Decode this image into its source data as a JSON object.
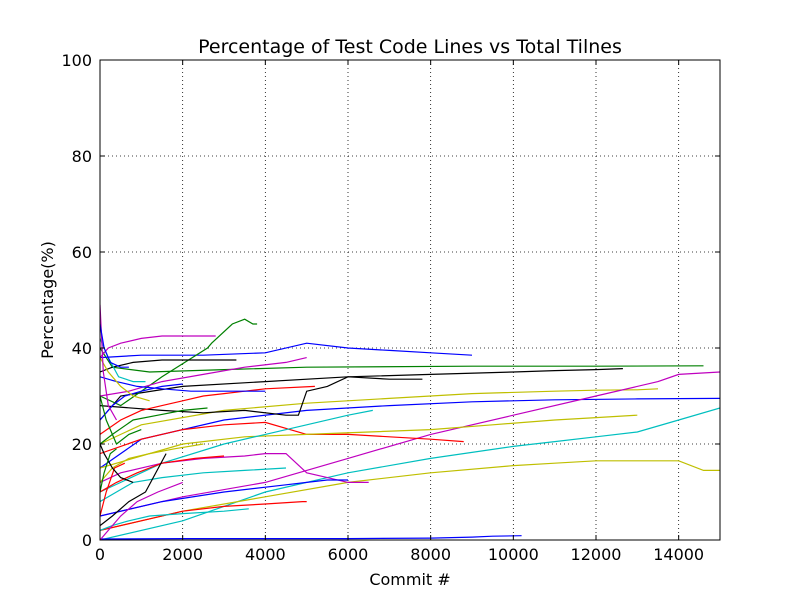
{
  "chart_data": {
    "type": "line",
    "title": "Percentage of Test Code Lines vs Total Tilnes",
    "xlabel": "Commit #",
    "ylabel": "Percentage(%)",
    "xlim": [
      0,
      15000
    ],
    "ylim": [
      0,
      100
    ],
    "xticks": [
      0,
      2000,
      4000,
      6000,
      8000,
      10000,
      12000,
      14000
    ],
    "yticks": [
      0,
      20,
      40,
      60,
      80,
      100
    ],
    "grid": true,
    "legend": "none",
    "colors": {
      "blue": "#0000ff",
      "green": "#008000",
      "red": "#ff0000",
      "cyan": "#00bfbf",
      "magenta": "#bf00bf",
      "yellow": "#bfbf00",
      "black": "#000000"
    },
    "series": [
      {
        "color": "green",
        "x": [
          0,
          300,
          1200,
          3000,
          5000,
          9000,
          12000,
          14600
        ],
        "y": [
          40,
          36,
          35,
          35.5,
          36,
          36.2,
          36.2,
          36.3
        ]
      },
      {
        "color": "black",
        "x": [
          0,
          500,
          2000,
          4000,
          6000,
          8000,
          10000,
          11000,
          12000,
          12650
        ],
        "y": [
          25,
          30,
          32,
          33,
          34,
          34.5,
          35,
          35.3,
          35.5,
          35.7
        ]
      },
      {
        "color": "yellow",
        "x": [
          0,
          1000,
          3000,
          5000,
          7000,
          9000,
          11000,
          12000,
          13000,
          13500
        ],
        "y": [
          20,
          24,
          27,
          28.5,
          29.5,
          30.5,
          31,
          31.2,
          31.3,
          31.5
        ]
      },
      {
        "color": "blue",
        "x": [
          0,
          1000,
          3000,
          5000,
          7000,
          9000,
          11000,
          13000,
          15000
        ],
        "y": [
          15,
          21,
          25,
          27,
          28,
          28.8,
          29.2,
          29.4,
          29.5
        ]
      },
      {
        "color": "magenta",
        "x": [
          0,
          2000,
          4000,
          6000,
          8000,
          10000,
          12000,
          13500,
          14000,
          15000
        ],
        "y": [
          5,
          9,
          12,
          17,
          22,
          26,
          30,
          33,
          34.5,
          35
        ]
      },
      {
        "color": "cyan",
        "x": [
          0,
          2000,
          4000,
          6000,
          8000,
          10000,
          11000,
          12000,
          13000,
          14000,
          15000
        ],
        "y": [
          0,
          4,
          10,
          14,
          17,
          19.5,
          20.5,
          21.5,
          22.5,
          25,
          27.5
        ]
      },
      {
        "color": "yellow",
        "x": [
          0,
          2000,
          4000,
          6000,
          8000,
          10000,
          11000,
          12000,
          13000,
          14000,
          14600,
          15000
        ],
        "y": [
          2,
          6,
          9,
          12,
          14,
          15.5,
          16,
          16.5,
          16.5,
          16.5,
          14.5,
          14.5
        ]
      },
      {
        "color": "blue",
        "x": [
          0,
          1000,
          2500,
          4000,
          5000,
          6000,
          7000,
          8000,
          9000
        ],
        "y": [
          38,
          38.5,
          38.5,
          39,
          41,
          40,
          39.5,
          39,
          38.5
        ]
      },
      {
        "color": "green",
        "x": [
          0,
          500,
          1500,
          2600,
          2700,
          3200,
          3500,
          3700,
          3800
        ],
        "y": [
          30,
          28,
          34,
          40,
          41,
          45,
          46,
          45,
          45
        ]
      },
      {
        "color": "black",
        "x": [
          0,
          1500,
          2500,
          3500,
          4500,
          4800,
          5000,
          5500,
          6000,
          7000,
          7800
        ],
        "y": [
          28,
          27,
          26.5,
          27,
          26,
          26,
          31,
          32,
          34,
          33.5,
          33.5
        ]
      },
      {
        "color": "red",
        "x": [
          0,
          1000,
          2000,
          3000,
          4000,
          5000,
          6000,
          7000,
          8000,
          8800
        ],
        "y": [
          18,
          21,
          23,
          24,
          24.5,
          22,
          22,
          21.5,
          21,
          20.5
        ]
      },
      {
        "color": "yellow",
        "x": [
          0,
          2000,
          3500,
          5000,
          6500,
          8000,
          9500,
          11000,
          12000,
          13000
        ],
        "y": [
          15,
          20,
          21.5,
          22,
          22.5,
          23,
          24,
          25,
          25.5,
          26
        ]
      },
      {
        "color": "cyan",
        "x": [
          0,
          1500,
          3000,
          4000,
          5000,
          6000,
          6600
        ],
        "y": [
          10,
          16,
          20,
          22,
          24,
          26,
          27
        ]
      },
      {
        "color": "magenta",
        "x": [
          0,
          500,
          1500,
          2500,
          3500,
          4000,
          4500,
          5000,
          5500,
          6000,
          6500
        ],
        "y": [
          12,
          14,
          16,
          17,
          17.5,
          18,
          18,
          14,
          13,
          12,
          12
        ]
      },
      {
        "color": "blue",
        "x": [
          0,
          1500,
          3000,
          4500,
          5000,
          5500,
          6000
        ],
        "y": [
          5,
          8,
          10,
          11.5,
          12,
          12.5,
          12.5
        ]
      },
      {
        "color": "red",
        "x": [
          0,
          1000,
          2000,
          3000,
          4000,
          4900,
          5000
        ],
        "y": [
          2,
          4,
          6,
          7,
          7.5,
          8,
          8
        ]
      },
      {
        "color": "blue",
        "x": [
          0,
          2000,
          4000,
          6000,
          8000,
          9000,
          9500,
          10200
        ],
        "y": [
          0.2,
          0.3,
          0.3,
          0.3,
          0.4,
          0.6,
          0.8,
          0.9
        ]
      },
      {
        "color": "magenta",
        "x": [
          0,
          200,
          500,
          1000,
          1500,
          2000,
          2800
        ],
        "y": [
          38,
          40,
          41,
          42,
          42.5,
          42.5,
          42.5
        ]
      },
      {
        "color": "black",
        "x": [
          0,
          300,
          800,
          1500,
          2000,
          2500,
          3000,
          3300
        ],
        "y": [
          35,
          36,
          37,
          37.5,
          37.5,
          37.5,
          37.5,
          37.5
        ]
      },
      {
        "color": "red",
        "x": [
          0,
          500,
          1000,
          1500,
          2000,
          2500,
          3000,
          3500,
          4000,
          5200
        ],
        "y": [
          22,
          25,
          27,
          28,
          29,
          30,
          30.5,
          31,
          31.5,
          32
        ]
      },
      {
        "color": "cyan",
        "x": [
          0,
          400,
          800,
          1500,
          2500,
          3500,
          4500
        ],
        "y": [
          8,
          10,
          12,
          13,
          14,
          14.5,
          15
        ]
      },
      {
        "color": "magenta",
        "x": [
          0,
          700,
          1500,
          2500,
          3500,
          4500,
          5000
        ],
        "y": [
          30,
          31,
          33,
          34.5,
          36,
          37,
          38
        ]
      },
      {
        "color": "green",
        "x": [
          0,
          300,
          800,
          1400,
          2000,
          2600
        ],
        "y": [
          20,
          22,
          25,
          26,
          27,
          27.5
        ]
      },
      {
        "color": "blue",
        "x": [
          0,
          400,
          900,
          1500,
          2200,
          3000,
          4000
        ],
        "y": [
          34,
          33,
          32,
          31.5,
          31,
          31,
          31
        ]
      },
      {
        "color": "yellow",
        "x": [
          0,
          300,
          700,
          1200,
          1800,
          2500
        ],
        "y": [
          12,
          15,
          17,
          18,
          19,
          20
        ]
      },
      {
        "color": "cyan",
        "x": [
          0,
          300,
          700,
          1200,
          2000,
          3000,
          3600
        ],
        "y": [
          2,
          3,
          4,
          5,
          5.5,
          6,
          6.5
        ]
      },
      {
        "color": "red",
        "x": [
          0,
          400,
          900,
          1500,
          2300,
          3000
        ],
        "y": [
          10,
          12,
          14,
          16,
          17,
          17.5
        ]
      },
      {
        "color": "black",
        "x": [
          0,
          300,
          700,
          1100,
          1600
        ],
        "y": [
          3,
          5,
          8,
          10,
          18
        ]
      },
      {
        "color": "blue",
        "x": [
          0,
          300,
          600,
          1000,
          1500,
          2000
        ],
        "y": [
          25,
          28,
          30,
          31,
          32,
          32.5
        ]
      },
      {
        "color": "magenta",
        "x": [
          0,
          200,
          500,
          900,
          1400,
          2000
        ],
        "y": [
          0,
          2,
          5,
          8,
          10,
          12
        ]
      },
      {
        "color": "green",
        "x": [
          0,
          150,
          400,
          700,
          1000
        ],
        "y": [
          30,
          25,
          20,
          22,
          23
        ]
      },
      {
        "color": "yellow",
        "x": [
          0,
          200,
          500,
          800,
          1200
        ],
        "y": [
          38,
          35,
          32,
          30,
          29
        ]
      },
      {
        "color": "red",
        "x": [
          0,
          150,
          350,
          600
        ],
        "y": [
          5,
          10,
          15,
          16
        ]
      },
      {
        "color": "cyan",
        "x": [
          0,
          200,
          450,
          800,
          1100
        ],
        "y": [
          42,
          38,
          34,
          33,
          33
        ]
      },
      {
        "color": "black",
        "x": [
          0,
          100,
          300,
          500,
          800
        ],
        "y": [
          20,
          18,
          15,
          13,
          12
        ]
      },
      {
        "color": "magenta",
        "x": [
          0,
          80,
          200,
          400
        ],
        "y": [
          49,
          35,
          28,
          25
        ]
      },
      {
        "color": "blue",
        "x": [
          0,
          100,
          250,
          500,
          700
        ],
        "y": [
          45,
          40,
          37,
          36,
          36
        ]
      },
      {
        "color": "green",
        "x": [
          0,
          100,
          250,
          400
        ],
        "y": [
          10,
          14,
          18,
          19
        ]
      }
    ]
  }
}
